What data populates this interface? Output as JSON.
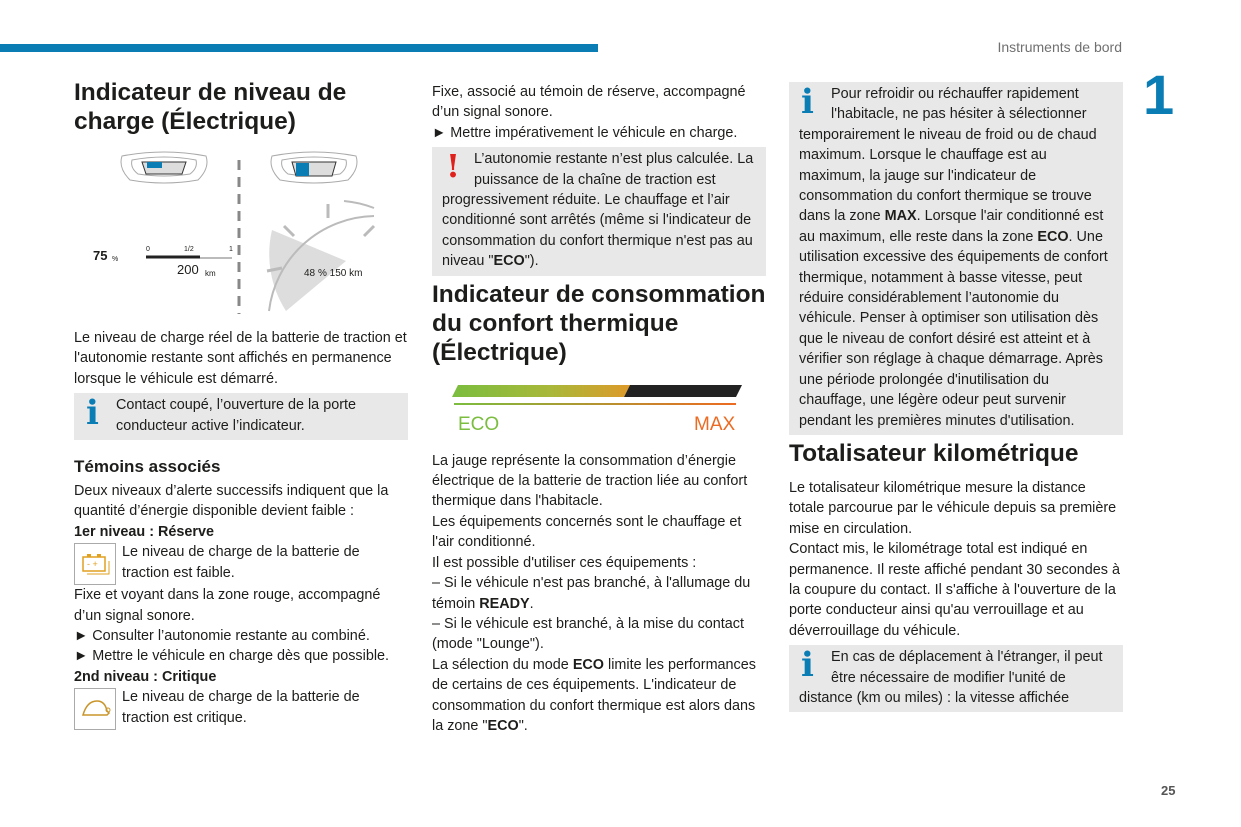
{
  "header": {
    "section": "Instruments de bord",
    "chapter": "1",
    "page": "25"
  },
  "figure1": {
    "pct_left": "75",
    "pct_unit": "%",
    "scale": [
      "0",
      "1/2",
      "1"
    ],
    "range": "200",
    "range_unit": "km",
    "pct_right": "48",
    "right_text": "% 150 km"
  },
  "figure2": {
    "eco": "ECO",
    "max": "MAX",
    "colors": {
      "eco": "#7bbd3f",
      "max": "#ec6b22"
    }
  },
  "columns": [
    [
      {
        "type": "h1",
        "text": "Indicateur de niveau de charge (Électrique)"
      },
      {
        "type": "fig1"
      },
      {
        "type": "p",
        "seg": [
          [
            "Le niveau de charge réel de la batterie de traction et l'autonomie restante sont affichés en permanence lorsque le véhicule est démarré.",
            0
          ]
        ]
      },
      {
        "type": "info",
        "seg": [
          [
            "Contact coupé, l’ouverture de la porte conducteur active l’indicateur.",
            0
          ]
        ]
      },
      {
        "type": "h2",
        "text": "Témoins associés"
      },
      {
        "type": "p",
        "seg": [
          [
            "Deux niveaux d’alerte successifs indiquent que la quantité d’énergie disponible devient faible :",
            0
          ]
        ]
      },
      {
        "type": "p",
        "seg": [
          [
            "1er niveau : Réserve",
            1
          ]
        ]
      },
      {
        "type": "item",
        "icon": "battery-warning-icon",
        "seg": [
          [
            "Le niveau de charge de la batterie de traction est faible.",
            0
          ]
        ]
      },
      {
        "type": "p",
        "seg": [
          [
            "Fixe et voyant dans la zone rouge, accompagné d’un signal sonore.",
            0
          ]
        ]
      },
      {
        "type": "p",
        "seg": [
          [
            "► Consulter l’autonomie restante au combiné.",
            0
          ]
        ]
      },
      {
        "type": "p",
        "seg": [
          [
            "► Mettre le véhicule en charge dès que possible.",
            0
          ]
        ]
      },
      {
        "type": "p",
        "seg": [
          [
            "2nd niveau : Critique",
            1
          ]
        ]
      },
      {
        "type": "item",
        "icon": "turtle-icon",
        "seg": [
          [
            "Le niveau de charge de la batterie de traction est critique.",
            0
          ]
        ]
      }
    ],
    [
      {
        "type": "p",
        "seg": [
          [
            "Fixe, associé au témoin de réserve, accompagné d’un signal sonore.",
            0
          ]
        ]
      },
      {
        "type": "p",
        "seg": [
          [
            "► Mettre impérativement le véhicule en charge.",
            0
          ]
        ]
      },
      {
        "type": "warn",
        "seg": [
          [
            "L’autonomie restante n’est plus calculée. La puissance de la chaîne de traction est progressivement réduite. Le chauffage et l’air conditionné sont arrêtés (même si l'indicateur de consommation du confort thermique n'est pas au niveau \"",
            0
          ],
          [
            "ECO",
            1
          ],
          [
            "\").",
            0
          ]
        ]
      },
      {
        "type": "h1",
        "text": "Indicateur de consommation du confort thermique (Électrique)"
      },
      {
        "type": "fig2"
      },
      {
        "type": "p",
        "seg": [
          [
            "La jauge représente la consommation d’énergie électrique de la batterie de traction liée au confort thermique dans l'habitacle.",
            0
          ]
        ]
      },
      {
        "type": "p",
        "seg": [
          [
            "Les équipements concernés sont le chauffage et l'air conditionné.",
            0
          ]
        ]
      },
      {
        "type": "p",
        "seg": [
          [
            "Il est possible d'utiliser ces équipements :",
            0
          ]
        ]
      },
      {
        "type": "p",
        "seg": [
          [
            "– Si le véhicule n'est pas branché, à l'allumage du témoin ",
            0
          ],
          [
            "READY",
            1
          ],
          [
            ".",
            0
          ]
        ]
      },
      {
        "type": "p",
        "seg": [
          [
            "– Si le véhicule est branché, à la mise du contact (mode \"Lounge\").",
            0
          ]
        ]
      },
      {
        "type": "p",
        "seg": [
          [
            "La sélection du mode ",
            0
          ],
          [
            "ECO",
            1
          ],
          [
            " limite les performances de certains de ces équipements. L'indicateur de consommation du confort thermique est alors dans la zone \"",
            0
          ],
          [
            "ECO",
            1
          ],
          [
            "\".",
            0
          ]
        ]
      }
    ],
    [
      {
        "type": "info",
        "seg": [
          [
            "Pour refroidir ou réchauffer rapidement l'habitacle, ne pas hésiter à sélectionner temporairement le niveau de froid ou de chaud maximum. Lorsque le chauffage est au maximum, la jauge sur l'indicateur de consommation du confort thermique se trouve dans la zone ",
            0
          ],
          [
            "MAX",
            1
          ],
          [
            ". Lorsque l'air conditionné est au maximum, elle reste dans la zone ",
            0
          ],
          [
            "ECO",
            1
          ],
          [
            ". Une utilisation excessive des équipements de confort thermique, notamment à basse vitesse, peut réduire considérablement l’autonomie du véhicule. Penser à optimiser son utilisation dès que le niveau de confort désiré est atteint et à vérifier son réglage à chaque démarrage. Après une période prolongée d'inutilisation du chauffage, une légère odeur peut survenir pendant les premières minutes d'utilisation.",
            0
          ]
        ]
      },
      {
        "type": "h1",
        "text": "Totalisateur kilométrique"
      },
      {
        "type": "p",
        "seg": [
          [
            "Le totalisateur kilométrique mesure la distance totale parcourue par le véhicule depuis sa première mise en circulation.",
            0
          ]
        ]
      },
      {
        "type": "p",
        "seg": [
          [
            "Contact mis, le kilométrage total est indiqué en permanence. Il reste affiché pendant 30 secondes à la coupure du contact. Il s'affiche à l'ouverture de la porte conducteur ainsi qu'au verrouillage et au déverrouillage du véhicule.",
            0
          ]
        ]
      },
      {
        "type": "info",
        "seg": [
          [
            "En cas de déplacement à l'étranger, il peut être nécessaire de modifier l'unité de distance (km ou miles) : la vitesse affichée",
            0
          ]
        ]
      }
    ]
  ]
}
